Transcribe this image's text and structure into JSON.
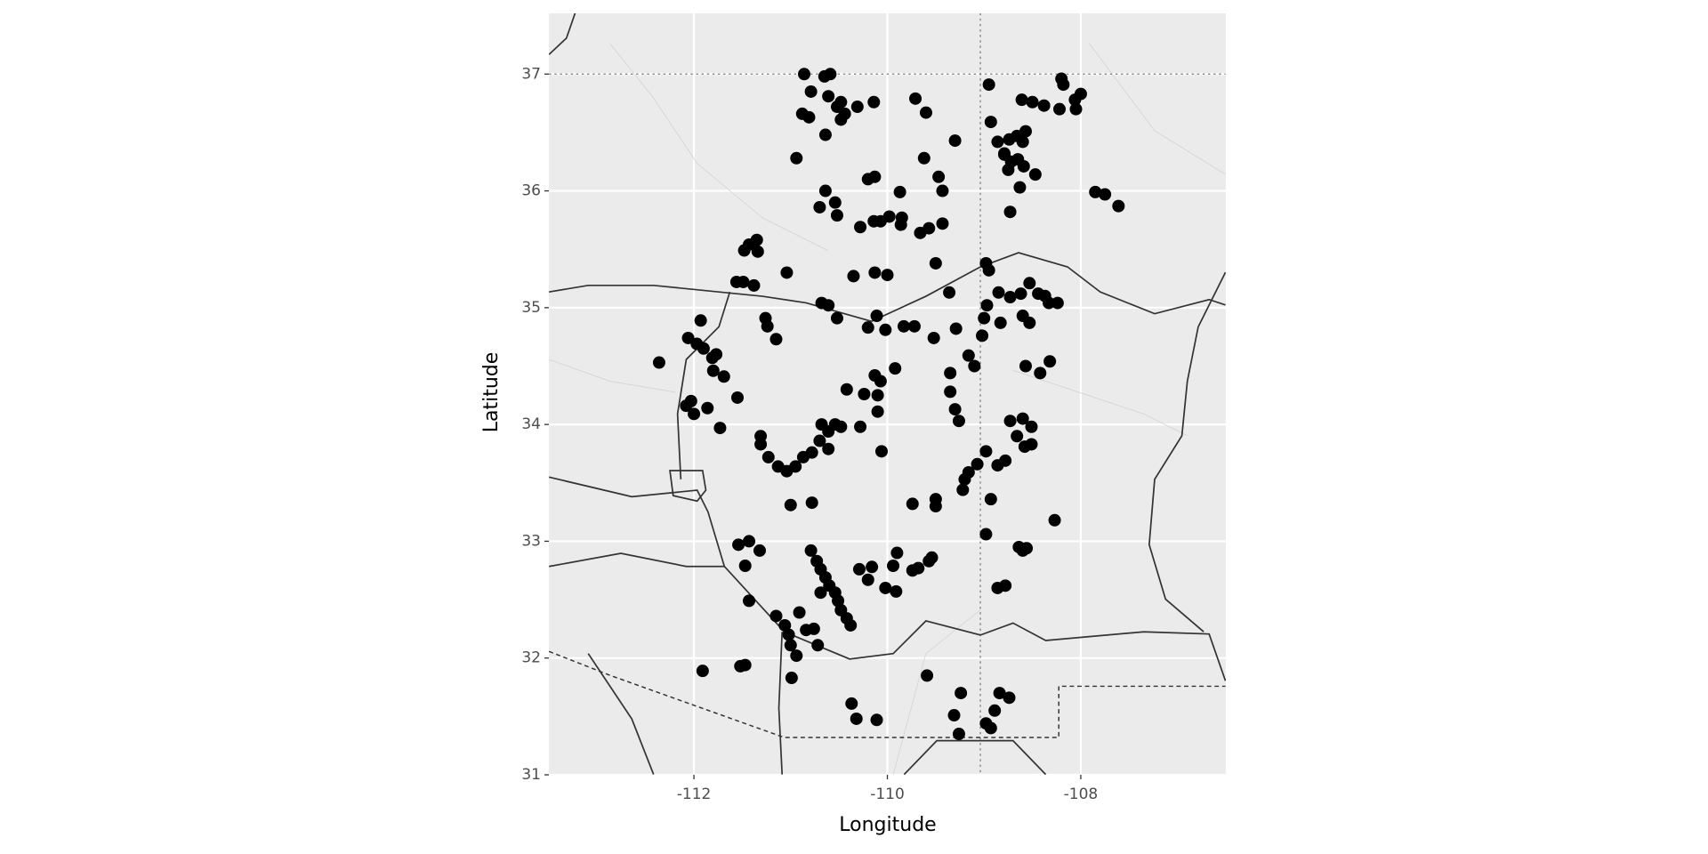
{
  "chart_data": {
    "type": "scatter",
    "x_label": "Longitude",
    "y_label": "Latitude",
    "xlim": [
      -113.5,
      -106.5
    ],
    "ylim": [
      31,
      37.52
    ],
    "xticks": [
      -112,
      -110,
      -108
    ],
    "yticks": [
      31,
      32,
      33,
      34,
      35,
      36,
      37
    ],
    "grid": true,
    "color": "#000000",
    "x": [
      -110.86,
      -110.65,
      -110.59,
      -110.79,
      -110.88,
      -110.81,
      -110.61,
      -110.52,
      -110.48,
      -110.44,
      -110.48,
      -110.31,
      -110.64,
      -110.14,
      -110.94,
      -110.2,
      -110.13,
      -110.64,
      -110.54,
      -110.52,
      -110.7,
      -109.87,
      -109.71,
      -109.6,
      -109.62,
      -109.47,
      -109.43,
      -109.3,
      -110.28,
      -110.14,
      -110.07,
      -109.98,
      -109.85,
      -109.86,
      -109.66,
      -109.57,
      -109.43,
      -109.5,
      -111.35,
      -111.43,
      -111.48,
      -111.34,
      -111.56,
      -111.49,
      -111.38,
      -111.04,
      -110.35,
      -110.13,
      -110.0,
      -110.68,
      -110.61,
      -110.52,
      -109.36,
      -108.98,
      -108.95,
      -111.26,
      -111.24,
      -111.15,
      -111.93,
      -112.06,
      -111.97,
      -111.9,
      -111.81,
      -111.77,
      -111.8,
      -111.69,
      -112.36,
      -112.08,
      -112.03,
      -112.0,
      -111.86,
      -111.73,
      -111.55,
      -111.31,
      -111.31,
      -111.23,
      -111.13,
      -111.04,
      -110.95,
      -110.87,
      -110.78,
      -110.7,
      -110.61,
      -110.61,
      -110.54,
      -110.48,
      -110.68,
      -110.42,
      -110.24,
      -110.13,
      -110.07,
      -110.1,
      -110.1,
      -110.28,
      -110.06,
      -109.92,
      -110.2,
      -110.11,
      -110.02,
      -109.83,
      -109.72,
      -109.52,
      -109.29,
      -109.16,
      -109.1,
      -109.35,
      -109.35,
      -109.3,
      -109.26,
      -108.97,
      -109.0,
      -109.02,
      -108.85,
      -108.73,
      -108.62,
      -108.53,
      -108.44,
      -108.33,
      -108.24,
      -108.37,
      -108.53,
      -108.6,
      -108.83,
      -108.32,
      -108.42,
      -108.57,
      -108.73,
      -108.66,
      -108.6,
      -108.51,
      -108.58,
      -108.51,
      -108.78,
      -108.86,
      -108.98,
      -109.07,
      -109.16,
      -109.2,
      -109.22,
      -108.93,
      -109.5,
      -109.5,
      -109.74,
      -108.98,
      -108.64,
      -108.56,
      -108.6,
      -108.27,
      -108.78,
      -108.86,
      -111.0,
      -110.78,
      -111.54,
      -111.43,
      -111.32,
      -111.47,
      -111.43,
      -110.79,
      -110.73,
      -110.69,
      -110.64,
      -110.6,
      -110.54,
      -110.51,
      -110.48,
      -110.42,
      -110.38,
      -110.69,
      -110.29,
      -110.16,
      -110.2,
      -109.9,
      -109.94,
      -110.02,
      -109.91,
      -109.74,
      -109.68,
      -109.57,
      -109.54,
      -111.15,
      -111.06,
      -111.02,
      -111.0,
      -110.94,
      -110.91,
      -110.84,
      -110.76,
      -110.72,
      -110.99,
      -111.91,
      -111.52,
      -111.47,
      -110.37,
      -110.32,
      -110.11,
      -109.59,
      -109.24,
      -109.31,
      -109.26,
      -108.98,
      -108.93,
      -108.89,
      -108.84,
      -108.74,
      -108.95,
      -108.93,
      -108.86,
      -108.74,
      -108.66,
      -108.57,
      -108.6,
      -108.79,
      -108.72,
      -108.65,
      -108.59,
      -108.75,
      -108.47,
      -108.63,
      -108.73,
      -108.79,
      -108.61,
      -108.5,
      -108.38,
      -108.2,
      -108.18,
      -108.22,
      -108.06,
      -108.0,
      -108.05,
      -107.85,
      -107.75,
      -107.61
    ],
    "values": [
      37.0,
      36.98,
      37.0,
      36.85,
      36.66,
      36.63,
      36.81,
      36.72,
      36.76,
      36.66,
      36.61,
      36.72,
      36.48,
      36.76,
      36.28,
      36.1,
      36.12,
      36.0,
      35.9,
      35.79,
      35.86,
      35.99,
      36.79,
      36.67,
      36.28,
      36.12,
      36.0,
      36.43,
      35.69,
      35.74,
      35.74,
      35.78,
      35.77,
      35.71,
      35.64,
      35.68,
      35.72,
      35.38,
      35.58,
      35.54,
      35.49,
      35.48,
      35.22,
      35.22,
      35.19,
      35.3,
      35.27,
      35.3,
      35.28,
      35.04,
      35.02,
      34.91,
      35.13,
      35.38,
      35.32,
      34.91,
      34.84,
      34.73,
      34.89,
      34.74,
      34.69,
      34.65,
      34.57,
      34.6,
      34.46,
      34.41,
      34.53,
      34.16,
      34.2,
      34.09,
      34.14,
      33.97,
      34.23,
      33.9,
      33.83,
      33.72,
      33.64,
      33.6,
      33.64,
      33.72,
      33.76,
      33.86,
      33.94,
      33.79,
      34.0,
      33.98,
      34.0,
      34.3,
      34.26,
      34.42,
      34.37,
      34.25,
      34.11,
      33.98,
      33.77,
      34.48,
      34.83,
      34.93,
      34.81,
      34.84,
      34.84,
      34.74,
      34.82,
      34.59,
      34.5,
      34.44,
      34.28,
      34.13,
      34.03,
      35.02,
      34.91,
      34.76,
      35.13,
      35.09,
      35.12,
      35.21,
      35.12,
      35.04,
      35.04,
      35.1,
      34.87,
      34.93,
      34.87,
      34.54,
      34.44,
      34.5,
      34.03,
      33.9,
      34.05,
      33.98,
      33.81,
      33.83,
      33.69,
      33.65,
      33.77,
      33.66,
      33.59,
      33.53,
      33.44,
      33.36,
      33.36,
      33.3,
      33.32,
      33.06,
      32.95,
      32.94,
      32.92,
      33.18,
      32.62,
      32.6,
      33.31,
      33.33,
      32.97,
      33.0,
      32.92,
      32.79,
      32.49,
      32.92,
      32.83,
      32.76,
      32.69,
      32.62,
      32.56,
      32.49,
      32.41,
      32.34,
      32.28,
      32.56,
      32.76,
      32.78,
      32.67,
      32.9,
      32.79,
      32.6,
      32.57,
      32.75,
      32.77,
      32.83,
      32.86,
      32.36,
      32.28,
      32.2,
      32.11,
      32.02,
      32.39,
      32.24,
      32.25,
      32.11,
      31.83,
      31.89,
      31.93,
      31.94,
      31.61,
      31.48,
      31.47,
      31.85,
      31.7,
      31.51,
      31.35,
      31.44,
      31.4,
      31.55,
      31.7,
      31.66,
      36.91,
      36.59,
      36.42,
      36.44,
      36.47,
      36.51,
      36.42,
      36.31,
      36.25,
      36.27,
      36.21,
      36.18,
      36.14,
      36.03,
      35.82,
      36.32,
      36.78,
      36.76,
      36.73,
      36.96,
      36.91,
      36.7,
      36.78,
      36.83,
      36.7,
      35.99,
      35.97,
      35.87
    ]
  }
}
